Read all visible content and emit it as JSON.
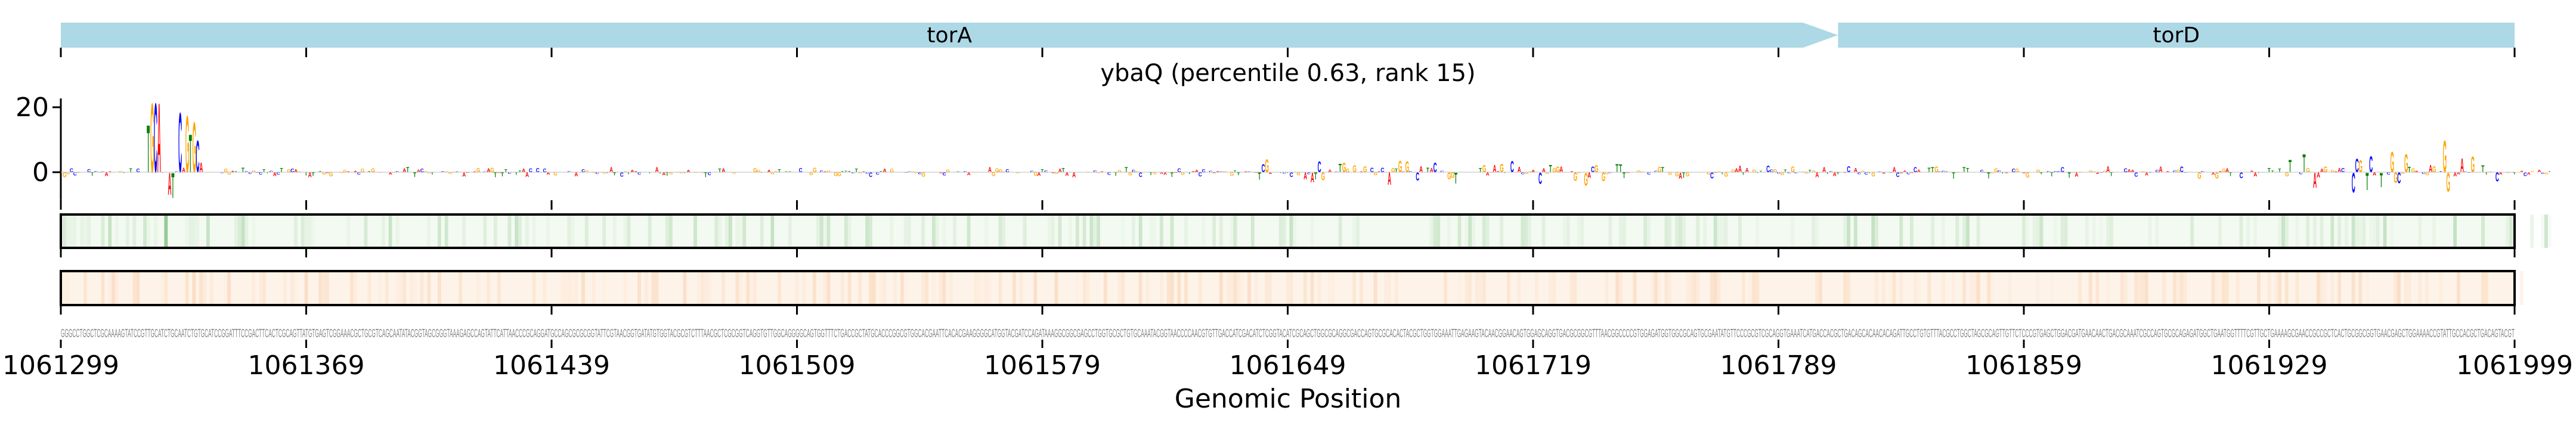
{
  "chart_data": {
    "type": "sequence-logo",
    "title": "ybaQ (percentile 0.63, rank 15)",
    "xlabel": "Genomic Position",
    "xlim": [
      1061299,
      1061999
    ],
    "xticks": [
      1061299,
      1061369,
      1061439,
      1061509,
      1061579,
      1061649,
      1061719,
      1061789,
      1061859,
      1061929,
      1061999
    ],
    "xtick_labels": [
      "1061299",
      "1061369",
      "1061439",
      "1061509",
      "1061579",
      "1061649",
      "1061719",
      "1061789",
      "1061859",
      "1061929",
      "1061999"
    ],
    "ylim": [
      -8.6,
      22.7
    ],
    "yticks": [
      0,
      20
    ],
    "ytick_labels": [
      "0",
      "20"
    ],
    "genes": [
      {
        "name": "torA",
        "start": 1061299,
        "end": 1061796,
        "strand": "+"
      },
      {
        "name": "torD",
        "start": 1061806,
        "end": 1061999,
        "strand": "+"
      }
    ],
    "sequence": "GGGCCTGGCTCGCAAAAGTATCCGTTGCATCTGCAATCTGTGCATCCGGATTTCCGACTTCACTCGCAGTTATGTGAGTCGGAAACGCTGCGTCAGCAATATACGGTAGCGGGTAAAGAGCCAGTATTCATTAACCCGCAGGATGCCAGCGCGCGGTATTCGTAACGGTGATATGTGGTACGCGTCTTTAACGCTCGCGGTCAGGTGTTGGCAGGGGCAGTGGTTTCTGACCGCTATGCACCCGGCGTGGCACGAATTCACACGAAGGGGCATGGTACGATCCAGATAAAGGCGGCGAGCCTGGTGCGCTGTGCAAATACGGTAACCCCAACGTGTTGACCATCGACATCTCGGTACATCGCAGCTGGCGCAGGCGACCAGTGCGCACACTACGCTGGTGGAAATTGAGAAGTACAACGGAACAGTGGAGCAGGTGACGCGGCGTTTAACGGCCCCGTGGAGATGGTGGCGCAGTGCGAATATGTTCCCGCGTCGCAGGTGAAATCATGACCACGCTGACAGCACAACACAGATTGCCTGTGTTTACGCCTGGCTAGCGCAGTTGTTCTCCCGTGAGCTGGACGATGAACAACTGACGCAAATCGCCAGTGCGCAGAGATGGCTGAATGGTTTTCGTTGCTGAAAAGCGAACCGCCGCTCACTGCGGCGGTGAACGAGCTGGAAAACCGTATTGCCACGCTGACAGTACGT",
    "logo_peaks": [
      {
        "pos": 1061324,
        "letters": [
          [
            "T",
            15
          ]
        ]
      },
      {
        "pos": 1061325,
        "letters": [
          [
            "G",
            22
          ]
        ]
      },
      {
        "pos": 1061326,
        "letters": [
          [
            "C",
            22
          ]
        ]
      },
      {
        "pos": 1061327,
        "letters": [
          [
            "A",
            22
          ]
        ]
      },
      {
        "pos": 1061330,
        "letters": [
          [
            "A",
            -7
          ]
        ]
      },
      {
        "pos": 1061331,
        "letters": [
          [
            "T",
            -8
          ]
        ]
      },
      {
        "pos": 1061333,
        "letters": [
          [
            "C",
            19
          ]
        ]
      },
      {
        "pos": 1061335,
        "letters": [
          [
            "G",
            18
          ]
        ]
      },
      {
        "pos": 1061336,
        "letters": [
          [
            "T",
            12
          ]
        ]
      },
      {
        "pos": 1061337,
        "letters": [
          [
            "G",
            16
          ]
        ]
      },
      {
        "pos": 1061338,
        "letters": [
          [
            "C",
            10
          ]
        ]
      },
      {
        "pos": 1061339,
        "letters": [
          [
            "A",
            3
          ]
        ]
      },
      {
        "pos": 1061979,
        "letters": [
          [
            "G",
            10
          ]
        ]
      }
    ],
    "activity_regions": [
      {
        "start": 1061299,
        "end": 1061640,
        "amplitude": 1.6
      },
      {
        "start": 1061640,
        "end": 1061745,
        "amplitude": 4.5
      },
      {
        "start": 1061745,
        "end": 1061935,
        "amplitude": 2.2
      },
      {
        "start": 1061935,
        "end": 1061999,
        "amplitude": 6.5
      }
    ],
    "tracks": [
      {
        "name": "track-1",
        "color": "#3a9a3a",
        "base": "#f3faf1",
        "highlight_pos": [
          1061329
        ]
      },
      {
        "name": "track-2",
        "color": "#f2a060",
        "base": "#fef3e8",
        "highlight_pos": [
          1061337,
          1061320,
          1061990
        ]
      }
    ],
    "base_colors": {
      "A": "#ff0000",
      "C": "#0000ff",
      "G": "#ffa500",
      "T": "#008000"
    },
    "gene_color": "#add8e6"
  }
}
